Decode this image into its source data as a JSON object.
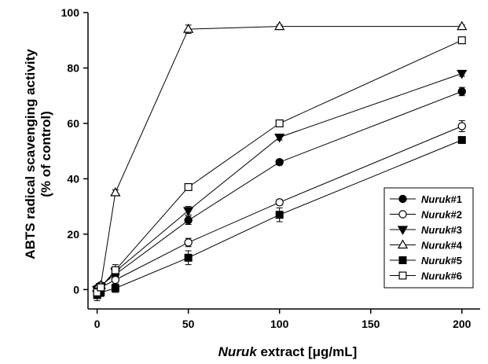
{
  "chart_data": {
    "type": "line",
    "title": "",
    "xlabel": {
      "italic": "Nuruk",
      "rest": " extract [μg/mL]"
    },
    "ylabel": [
      "ABTS radical scavenging activity",
      "(% of control)"
    ],
    "xlim": [
      -5,
      210
    ],
    "ylim": [
      -7,
      100
    ],
    "xticks": [
      0,
      50,
      100,
      150,
      200
    ],
    "yticks": [
      0,
      20,
      40,
      60,
      80,
      100
    ],
    "grid": false,
    "legend": {
      "position": "bottom-right"
    },
    "x": [
      0,
      2,
      10,
      50,
      100,
      200
    ],
    "series": [
      {
        "name": "Nuruk#1",
        "label_prefix": "Nuruk",
        "label_suffix": "#1",
        "marker": "circle",
        "filled": true,
        "values": [
          0.5,
          1.5,
          5.5,
          25.0,
          46.0,
          71.5
        ],
        "errors": [
          1.0,
          1.0,
          1.0,
          1.5,
          1.0,
          1.5
        ]
      },
      {
        "name": "Nuruk#2",
        "label_prefix": "Nuruk",
        "label_suffix": "#2",
        "marker": "circle",
        "filled": false,
        "values": [
          -0.5,
          0.8,
          3.5,
          17.0,
          31.5,
          59.0
        ],
        "errors": [
          1.0,
          1.0,
          1.5,
          1.5,
          1.0,
          2.0
        ]
      },
      {
        "name": "Nuruk#3",
        "label_prefix": "Nuruk",
        "label_suffix": "#3",
        "marker": "triangle-down",
        "filled": true,
        "values": [
          0.0,
          1.0,
          6.5,
          28.5,
          55.0,
          78.0
        ],
        "errors": [
          1.0,
          1.0,
          1.0,
          1.5,
          1.0,
          1.0
        ]
      },
      {
        "name": "Nuruk#4",
        "label_prefix": "Nuruk",
        "label_suffix": "#4",
        "marker": "triangle-up",
        "filled": false,
        "values": [
          0.5,
          1.5,
          35.0,
          94.0,
          95.0,
          95.0
        ],
        "errors": [
          0.5,
          0.5,
          1.0,
          1.5,
          0.5,
          0.5
        ]
      },
      {
        "name": "Nuruk#5",
        "label_prefix": "Nuruk",
        "label_suffix": "#5",
        "marker": "square",
        "filled": true,
        "values": [
          -2.0,
          -1.0,
          0.5,
          11.5,
          27.0,
          54.0
        ],
        "errors": [
          2.0,
          1.5,
          1.5,
          2.5,
          2.5,
          1.0
        ]
      },
      {
        "name": "Nuruk#6",
        "label_prefix": "Nuruk",
        "label_suffix": "#6",
        "marker": "square",
        "filled": false,
        "values": [
          -1.0,
          0.8,
          7.0,
          37.0,
          60.0,
          90.0
        ],
        "errors": [
          1.5,
          1.0,
          2.0,
          1.0,
          1.0,
          1.0
        ]
      }
    ]
  }
}
